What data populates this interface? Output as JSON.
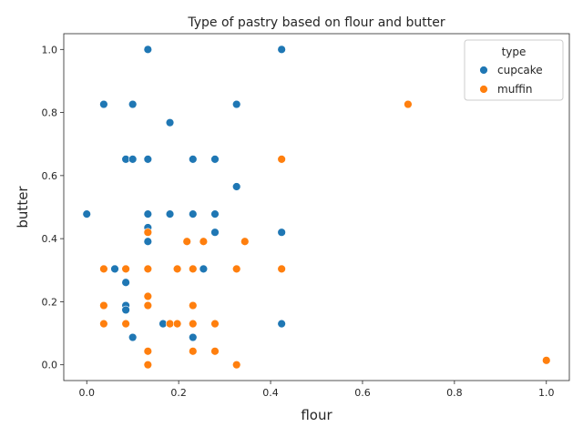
{
  "chart_data": {
    "type": "scatter",
    "title": "Type of pastry based on flour and butter",
    "xlabel": "flour",
    "ylabel": "butter",
    "xlim": [
      -0.05,
      1.05
    ],
    "ylim": [
      -0.05,
      1.05
    ],
    "xticks": [
      0.0,
      0.2,
      0.4,
      0.6,
      0.8,
      1.0
    ],
    "xtick_labels": [
      "0.0",
      "0.2",
      "0.4",
      "0.6",
      "0.8",
      "1.0"
    ],
    "yticks": [
      0.0,
      0.2,
      0.4,
      0.6,
      0.8,
      1.0
    ],
    "ytick_labels": [
      "0.0",
      "0.2",
      "0.4",
      "0.6",
      "0.8",
      "1.0"
    ],
    "grid": false,
    "legend": {
      "title": "type",
      "placement": "top-right"
    },
    "series": [
      {
        "name": "cupcake",
        "color": "#1f77b4",
        "points": [
          [
            0.133,
            1.0
          ],
          [
            0.424,
            1.0
          ],
          [
            0.037,
            0.826
          ],
          [
            0.1,
            0.826
          ],
          [
            0.326,
            0.826
          ],
          [
            0.181,
            0.768
          ],
          [
            0.085,
            0.652
          ],
          [
            0.1,
            0.652
          ],
          [
            0.133,
            0.652
          ],
          [
            0.231,
            0.652
          ],
          [
            0.279,
            0.652
          ],
          [
            0.326,
            0.565
          ],
          [
            0.0,
            0.478
          ],
          [
            0.133,
            0.478
          ],
          [
            0.181,
            0.478
          ],
          [
            0.231,
            0.478
          ],
          [
            0.279,
            0.478
          ],
          [
            0.133,
            0.435
          ],
          [
            0.279,
            0.42
          ],
          [
            0.424,
            0.42
          ],
          [
            0.133,
            0.391
          ],
          [
            0.061,
            0.304
          ],
          [
            0.254,
            0.304
          ],
          [
            0.085,
            0.261
          ],
          [
            0.085,
            0.188
          ],
          [
            0.085,
            0.174
          ],
          [
            0.166,
            0.13
          ],
          [
            0.424,
            0.13
          ],
          [
            0.1,
            0.087
          ],
          [
            0.231,
            0.087
          ]
        ]
      },
      {
        "name": "muffin",
        "color": "#ff7f0e",
        "points": [
          [
            0.699,
            0.826
          ],
          [
            0.424,
            0.652
          ],
          [
            0.133,
            0.42
          ],
          [
            0.218,
            0.391
          ],
          [
            0.254,
            0.391
          ],
          [
            0.344,
            0.391
          ],
          [
            0.037,
            0.304
          ],
          [
            0.085,
            0.304
          ],
          [
            0.133,
            0.304
          ],
          [
            0.197,
            0.304
          ],
          [
            0.231,
            0.304
          ],
          [
            0.326,
            0.304
          ],
          [
            0.424,
            0.304
          ],
          [
            0.133,
            0.217
          ],
          [
            0.037,
            0.188
          ],
          [
            0.133,
            0.188
          ],
          [
            0.231,
            0.188
          ],
          [
            0.037,
            0.13
          ],
          [
            0.085,
            0.13
          ],
          [
            0.181,
            0.13
          ],
          [
            0.197,
            0.13
          ],
          [
            0.231,
            0.13
          ],
          [
            0.279,
            0.13
          ],
          [
            0.133,
            0.043
          ],
          [
            0.231,
            0.043
          ],
          [
            0.279,
            0.043
          ],
          [
            0.133,
            0.0
          ],
          [
            0.326,
            0.0
          ],
          [
            1.0,
            0.014
          ]
        ]
      }
    ]
  }
}
